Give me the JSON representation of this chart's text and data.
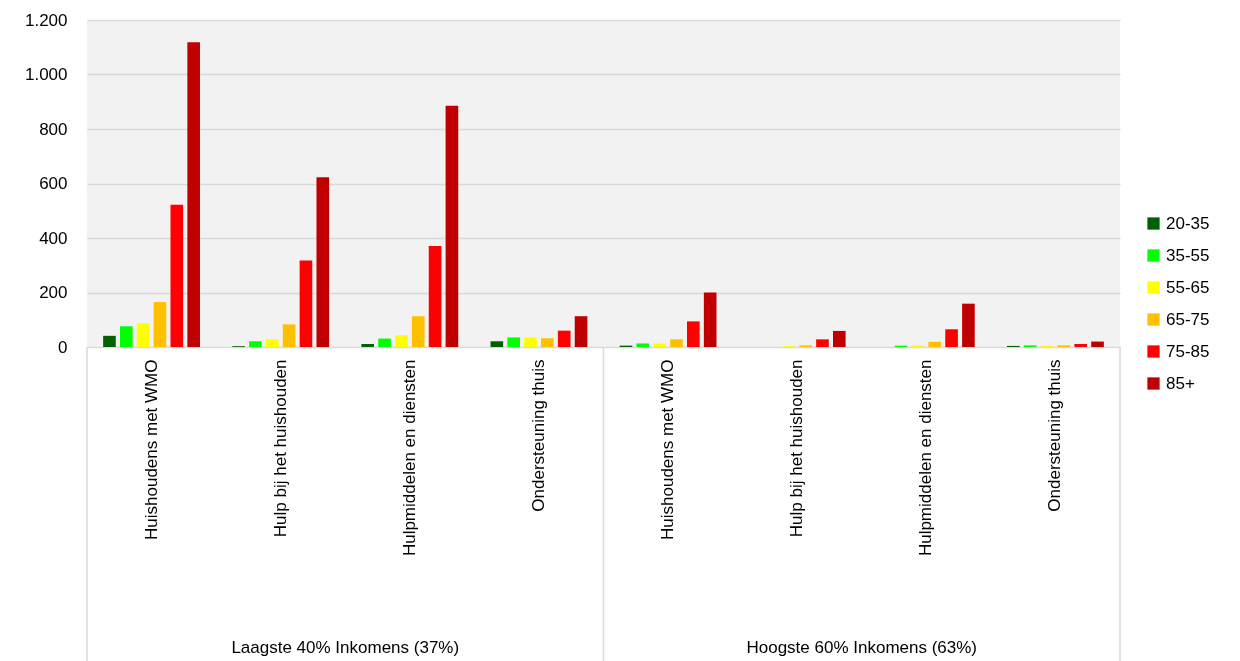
{
  "chart_data": {
    "type": "bar",
    "categories": [
      "Huishoudens met WMO",
      "Hulp bij het huishouden",
      "Hulpmiddelen en diensten",
      "Ondersteuning thuis",
      "Huishoudens met WMO",
      "Hulp bij het huishouden",
      "Hulpmiddelen en diensten",
      "Ondersteuning thuis"
    ],
    "annotations": [
      "Laagste 40% Inkomens (37%)",
      "Hoogste 60% Inkomens (63%)"
    ],
    "series": [
      {
        "name": "20-35",
        "color": "#006100",
        "values": [
          41,
          3,
          11,
          21,
          5,
          null,
          null,
          4
        ]
      },
      {
        "name": "35-55",
        "color": "#00ff00",
        "values": [
          76,
          21,
          31,
          35,
          13,
          null,
          5,
          6
        ]
      },
      {
        "name": "55-65",
        "color": "#ffff00",
        "values": [
          87,
          28,
          43,
          35,
          13,
          3,
          6,
          5
        ]
      },
      {
        "name": "65-75",
        "color": "#ffc000",
        "values": [
          165,
          83,
          113,
          32,
          28,
          6,
          19,
          6
        ]
      },
      {
        "name": "75-85",
        "color": "#ff0000",
        "values": [
          522,
          317,
          371,
          60,
          94,
          28,
          65,
          11
        ]
      },
      {
        "name": "85+",
        "color": "#c00000",
        "values": [
          1118,
          623,
          885,
          113,
          200,
          59,
          159,
          20
        ]
      }
    ],
    "ylim": [
      0,
      1200
    ],
    "yticks": [
      0,
      200,
      400,
      600,
      800,
      {
        "value": 1000,
        "label": "1.000"
      },
      {
        "value": 1200,
        "label": "1.200"
      }
    ],
    "grid": "y",
    "legend": "right"
  }
}
